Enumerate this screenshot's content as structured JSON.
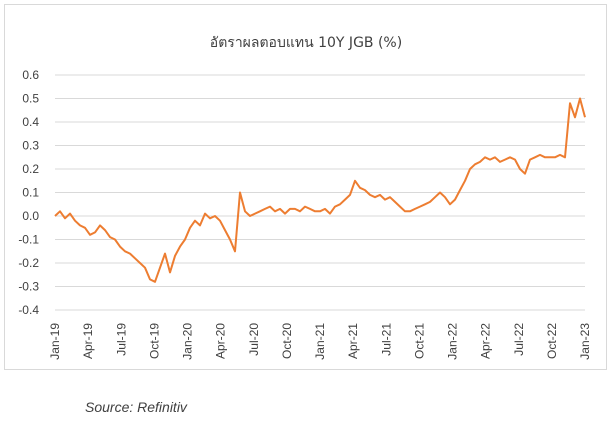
{
  "chart_data": {
    "type": "line",
    "title": "อัตราผลตอบแทน 10Y JGB (%)",
    "xlabel": "",
    "ylabel": "",
    "ylim": [
      -0.4,
      0.6
    ],
    "y_ticks": [
      "0.6",
      "0.5",
      "0.4",
      "0.3",
      "0.2",
      "0.1",
      "0.0",
      "-0.1",
      "-0.2",
      "-0.3",
      "-0.4"
    ],
    "x_ticks": [
      "Jan-19",
      "Apr-19",
      "Jul-19",
      "Oct-19",
      "Jan-20",
      "Apr-20",
      "Jul-20",
      "Oct-20",
      "Jan-21",
      "Apr-21",
      "Jul-21",
      "Oct-21",
      "Jan-22",
      "Apr-22",
      "Jul-22",
      "Oct-22",
      "Jan-23"
    ],
    "grid": "horizontal",
    "legend": "none",
    "color": "#ED7D31",
    "series": [
      {
        "values": [
          0.0,
          0.02,
          -0.01,
          0.01,
          -0.02,
          -0.04,
          -0.05,
          -0.08,
          -0.07,
          -0.04,
          -0.06,
          -0.09,
          -0.1,
          -0.13,
          -0.15,
          -0.16,
          -0.18,
          -0.2,
          -0.22,
          -0.27,
          -0.28,
          -0.22,
          -0.16,
          -0.24,
          -0.17,
          -0.13,
          -0.1,
          -0.05,
          -0.02,
          -0.04,
          0.01,
          -0.01,
          0.0,
          -0.02,
          -0.06,
          -0.1,
          -0.15,
          0.1,
          0.02,
          0.0,
          0.01,
          0.02,
          0.03,
          0.04,
          0.02,
          0.03,
          0.01,
          0.03,
          0.03,
          0.02,
          0.04,
          0.03,
          0.02,
          0.02,
          0.03,
          0.01,
          0.04,
          0.05,
          0.07,
          0.09,
          0.15,
          0.12,
          0.11,
          0.09,
          0.08,
          0.09,
          0.07,
          0.08,
          0.06,
          0.04,
          0.02,
          0.02,
          0.03,
          0.04,
          0.05,
          0.06,
          0.08,
          0.1,
          0.08,
          0.05,
          0.07,
          0.11,
          0.15,
          0.2,
          0.22,
          0.23,
          0.25,
          0.24,
          0.25,
          0.23,
          0.24,
          0.25,
          0.24,
          0.2,
          0.18,
          0.24,
          0.25,
          0.26,
          0.25,
          0.25,
          0.25,
          0.26,
          0.25,
          0.48,
          0.42,
          0.5,
          0.42
        ]
      }
    ]
  },
  "source": "Source: Refinitiv"
}
